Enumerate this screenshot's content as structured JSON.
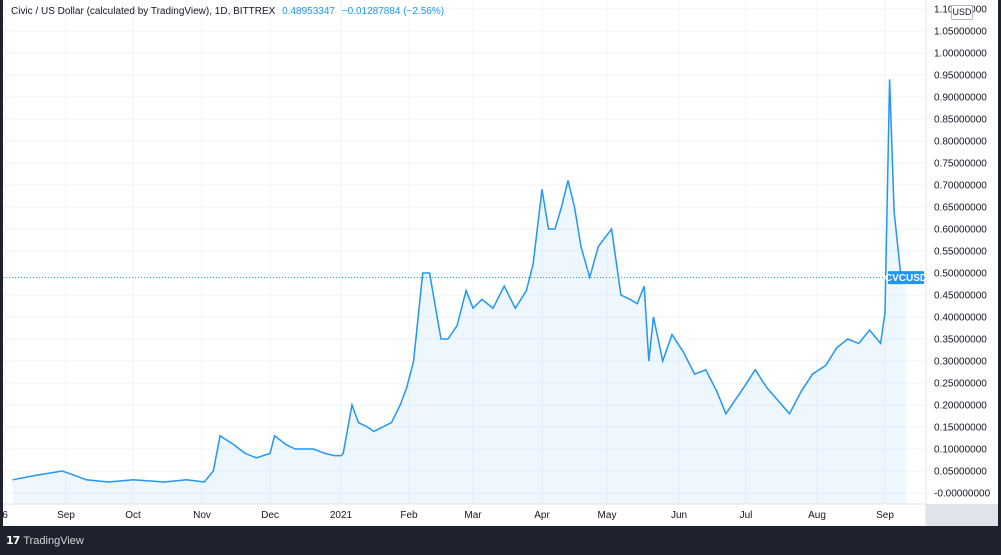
{
  "legend": {
    "symbol_desc": "Civic / US Dollar (calculated by TradingView), 1D, BITTREX",
    "last_price": "0.48953347",
    "change": "−0.01287884 (−2.56%)"
  },
  "currency_badge": "USD",
  "price_tag": "CVCUSD",
  "footer": {
    "brand": "TradingView",
    "logo_glyph": "17"
  },
  "colors": {
    "line": "#2196f3",
    "fill": "#2196f3",
    "grid": "#f0f3fa",
    "axis_text": "#131722",
    "tag_bg": "#2196f3"
  },
  "chart_data": {
    "type": "area",
    "title": "Civic / US Dollar (calculated by TradingView), 1D, BITTREX",
    "x_tick_labels": [
      "6",
      "Sep",
      "Oct",
      "Nov",
      "Dec",
      "2021",
      "Feb",
      "Mar",
      "Apr",
      "May",
      "Jun",
      "Jul",
      "Aug",
      "Sep"
    ],
    "y_tick_labels": [
      "1.10000000",
      "1.05000000",
      "1.00000000",
      "0.95000000",
      "0.90000000",
      "0.85000000",
      "0.80000000",
      "0.75000000",
      "0.70000000",
      "0.65000000",
      "0.60000000",
      "0.55000000",
      "0.50000000",
      "0.45000000",
      "0.40000000",
      "0.35000000",
      "0.30000000",
      "0.25000000",
      "0.20000000",
      "0.15000000",
      "0.10000000",
      "0.05000000",
      "-0.00000000"
    ],
    "ylim": [
      -0.01,
      1.1
    ],
    "grid": true,
    "last_value": 0.48953347,
    "x": [
      "2020-08-18",
      "2020-08-24",
      "2020-08-31",
      "2020-09-05",
      "2020-09-10",
      "2020-09-20",
      "2020-10-01",
      "2020-10-15",
      "2020-10-25",
      "2020-11-02",
      "2020-11-06",
      "2020-11-09",
      "2020-11-15",
      "2020-11-20",
      "2020-11-25",
      "2020-12-01",
      "2020-12-03",
      "2020-12-08",
      "2020-12-12",
      "2020-12-20",
      "2020-12-25",
      "2020-12-29",
      "2021-01-01",
      "2021-01-02",
      "2021-01-06",
      "2021-01-09",
      "2021-01-13",
      "2021-01-16",
      "2021-01-20",
      "2021-01-24",
      "2021-01-28",
      "2021-01-31",
      "2021-02-03",
      "2021-02-07",
      "2021-02-10",
      "2021-02-12",
      "2021-02-15",
      "2021-02-18",
      "2021-02-22",
      "2021-02-26",
      "2021-03-01",
      "2021-03-05",
      "2021-03-10",
      "2021-03-15",
      "2021-03-20",
      "2021-03-25",
      "2021-03-28",
      "2021-04-01",
      "2021-04-04",
      "2021-04-07",
      "2021-04-10",
      "2021-04-13",
      "2021-04-16",
      "2021-04-19",
      "2021-04-23",
      "2021-04-27",
      "2021-04-30",
      "2021-05-03",
      "2021-05-07",
      "2021-05-11",
      "2021-05-14",
      "2021-05-17",
      "2021-05-19",
      "2021-05-21",
      "2021-05-23",
      "2021-05-25",
      "2021-05-29",
      "2021-06-03",
      "2021-06-08",
      "2021-06-13",
      "2021-06-18",
      "2021-06-22",
      "2021-06-26",
      "2021-06-30",
      "2021-07-05",
      "2021-07-10",
      "2021-07-15",
      "2021-07-20",
      "2021-07-25",
      "2021-07-30",
      "2021-08-05",
      "2021-08-10",
      "2021-08-15",
      "2021-08-20",
      "2021-08-25",
      "2021-08-30",
      "2021-09-01",
      "2021-09-03",
      "2021-09-05",
      "2021-09-08",
      "2021-09-10"
    ],
    "values": [
      0.03,
      0.04,
      0.05,
      0.04,
      0.03,
      0.025,
      0.03,
      0.025,
      0.03,
      0.025,
      0.05,
      0.13,
      0.11,
      0.09,
      0.08,
      0.09,
      0.13,
      0.11,
      0.1,
      0.1,
      0.09,
      0.085,
      0.085,
      0.09,
      0.2,
      0.16,
      0.15,
      0.14,
      0.15,
      0.16,
      0.2,
      0.24,
      0.3,
      0.5,
      0.5,
      0.44,
      0.35,
      0.35,
      0.38,
      0.46,
      0.42,
      0.44,
      0.42,
      0.47,
      0.42,
      0.46,
      0.52,
      0.69,
      0.6,
      0.6,
      0.65,
      0.71,
      0.65,
      0.56,
      0.49,
      0.56,
      0.58,
      0.6,
      0.45,
      0.44,
      0.43,
      0.47,
      0.3,
      0.4,
      0.35,
      0.3,
      0.36,
      0.32,
      0.27,
      0.28,
      0.23,
      0.18,
      0.21,
      0.24,
      0.28,
      0.24,
      0.21,
      0.18,
      0.23,
      0.27,
      0.29,
      0.33,
      0.35,
      0.34,
      0.37,
      0.34,
      0.41,
      0.94,
      0.64,
      0.49,
      0.49
    ],
    "series": [
      {
        "name": "CVCUSD"
      }
    ]
  }
}
